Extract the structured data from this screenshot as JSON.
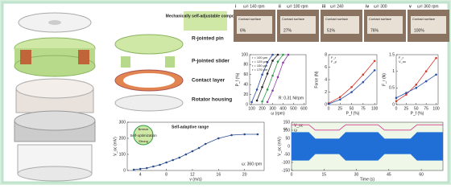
{
  "labels": {
    "components": "Mechanically self-adjustable components",
    "pin": "R-jointed pin",
    "slider": "P-jointed slider",
    "contact": "Contact layer",
    "housing": "Rotator housing"
  },
  "photos": [
    {
      "index": "i",
      "speed": "ω= 140 rpm",
      "contact": "Contact surface",
      "pct": "6%"
    },
    {
      "index": "ii",
      "speed": "ω= 180 rpm",
      "contact": "Contact surface",
      "pct": "27%"
    },
    {
      "index": "iii",
      "speed": "ω= 240",
      "contact": "Contact surface",
      "pct": "51%"
    },
    {
      "index": "iv",
      "speed": "ω= 300",
      "contact": "Contact surface",
      "pct": "76%"
    },
    {
      "index": "v",
      "speed": "ω= 360 rpm",
      "contact": "Contact surface",
      "pct": "100%"
    }
  ],
  "charts": [
    {
      "type": "line",
      "xlabel": "ω (rpm)",
      "ylabel": "P_f (%)",
      "annotation": "R: 0.31 N/rpm",
      "xlim": [
        80,
        620
      ],
      "xticks": [
        100,
        200,
        300,
        400,
        500,
        600
      ],
      "ylim": [
        0,
        100
      ],
      "yticks": [
        0,
        20,
        40,
        60,
        80,
        100
      ],
      "series": [
        {
          "name": "r = 100 μm",
          "color": "#2b4fa8",
          "x": [
            100,
            150,
            200,
            250,
            300
          ],
          "values": [
            5,
            30,
            60,
            85,
            100
          ]
        },
        {
          "name": "r = 125 μm",
          "color": "#222222",
          "x": [
            150,
            200,
            250,
            300,
            350
          ],
          "values": [
            8,
            35,
            62,
            88,
            100
          ]
        },
        {
          "name": "r = 150 μm",
          "color": "#2e9a4a",
          "x": [
            200,
            250,
            300,
            350,
            400
          ],
          "values": [
            6,
            30,
            58,
            86,
            100
          ]
        },
        {
          "name": "r = 175 μm",
          "color": "#8a3aa8",
          "x": [
            250,
            300,
            350,
            400,
            450
          ],
          "values": [
            5,
            28,
            55,
            84,
            100
          ]
        }
      ]
    },
    {
      "type": "line",
      "xlabel": "P_f (%)",
      "ylabel": "Force (N)",
      "xlim": [
        0,
        105
      ],
      "xticks": [
        0,
        25,
        50,
        75,
        100
      ],
      "ylim": [
        0,
        8
      ],
      "yticks": [
        0,
        2,
        4,
        6,
        8
      ],
      "series": [
        {
          "name": "F_r",
          "color": "#d33a2c",
          "x": [
            0,
            25,
            50,
            75,
            100
          ],
          "values": [
            0.2,
            1.2,
            2.8,
            4.8,
            7
          ]
        },
        {
          "name": "F_p",
          "color": "#2b4fa8",
          "x": [
            0,
            25,
            50,
            75,
            100
          ],
          "values": [
            0.1,
            0.8,
            2,
            3.6,
            5.5
          ]
        }
      ]
    },
    {
      "type": "line",
      "xlabel": "P_f (%)",
      "ylabel": "F_r (N)",
      "xlim": [
        0,
        105
      ],
      "xticks": [
        0,
        25,
        50,
        75,
        100
      ],
      "ylim": [
        0,
        1.5
      ],
      "yticks": [
        0,
        0.5,
        1,
        1.5
      ],
      "series": [
        {
          "name": "F_r",
          "color": "#d33a2c",
          "x": [
            0,
            25,
            50,
            75,
            100
          ],
          "values": [
            0.1,
            0.3,
            0.6,
            1,
            1.4
          ]
        },
        {
          "name": "V_oc",
          "color": "#2b4fa8",
          "x": [
            0,
            25,
            50,
            75,
            100
          ],
          "values": [
            0.2,
            0.35,
            0.5,
            0.7,
            0.9
          ]
        }
      ]
    },
    {
      "type": "line",
      "xlabel": "v (m/s)",
      "ylabel": "V_oc (mV)",
      "annotation": "ω: 360 rpm",
      "range": "Self-adaptive range",
      "optimization": "Self-optimization",
      "breeze": "Breeze",
      "strong": "Strong",
      "xlim": [
        2,
        23
      ],
      "xticks": [
        4,
        8,
        12,
        16,
        20
      ],
      "ylim": [
        0,
        300
      ],
      "yticks": [
        0,
        100,
        200,
        300
      ],
      "series": [
        {
          "name": "V_oc",
          "color": "#2a4d8f",
          "x": [
            3,
            4,
            5,
            6,
            7,
            8,
            9,
            10,
            11,
            12,
            13,
            14,
            16,
            18,
            20,
            22
          ],
          "values": [
            5,
            10,
            15,
            25,
            35,
            50,
            65,
            80,
            100,
            120,
            140,
            165,
            200,
            220,
            225,
            225
          ]
        }
      ]
    },
    {
      "type": "band",
      "xlabel": "Time (s)",
      "ylabel": "V_oc (mV)",
      "y2label": "ω",
      "xlim": [
        0,
        70
      ],
      "xticks": [
        0,
        15,
        30,
        45,
        60
      ],
      "ylim": [
        -150,
        150
      ],
      "yticks": [
        -150,
        -100,
        -50,
        0,
        50,
        100,
        150
      ],
      "y2lim": [
        0,
        400
      ],
      "series": [
        {
          "name": "V_oc",
          "color": "#1f6fd6",
          "x": [
            0,
            8,
            11,
            22,
            25,
            40,
            43,
            55,
            58,
            70
          ],
          "values": [
            110,
            110,
            60,
            60,
            110,
            110,
            60,
            60,
            110,
            110
          ]
        },
        {
          "name": "ω",
          "color": "#d33a8c",
          "axis": "y2",
          "x": [
            0,
            8,
            11,
            22,
            25,
            40,
            43,
            55,
            58,
            70
          ],
          "values": [
            360,
            360,
            140,
            140,
            360,
            360,
            140,
            140,
            360,
            360
          ]
        }
      ]
    }
  ]
}
